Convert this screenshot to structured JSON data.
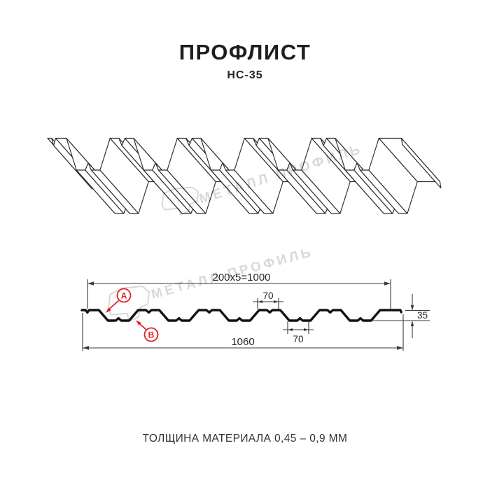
{
  "page": {
    "background": "#ffffff"
  },
  "header": {
    "title": "ПРОФЛИСТ",
    "subtitle": "НС-35"
  },
  "watermark": {
    "text": "МЕТАЛЛ ПРОФИЛЬ",
    "color": "#d7d7d7"
  },
  "drawing": {
    "line_color": "#2e2e2e",
    "profile_color": "#121212",
    "dim_color": "#3a3a3a",
    "accent_red": "#e31e24",
    "dims": {
      "coverage": "200x5=1000",
      "crest_width": "70",
      "valley_width": "70",
      "height": "35",
      "overall": "1060"
    },
    "labels": {
      "a": "А",
      "b": "В"
    }
  },
  "profile": {
    "pitch_mm": 200,
    "waves": 5,
    "crest_top_mm": 70,
    "valley_bottom_mm": 70,
    "height_mm": 35,
    "overall_width_mm": 1060
  },
  "footer": {
    "thickness_note": "ТОЛЩИНА МАТЕРИАЛА 0,45 – 0,9 ММ"
  }
}
